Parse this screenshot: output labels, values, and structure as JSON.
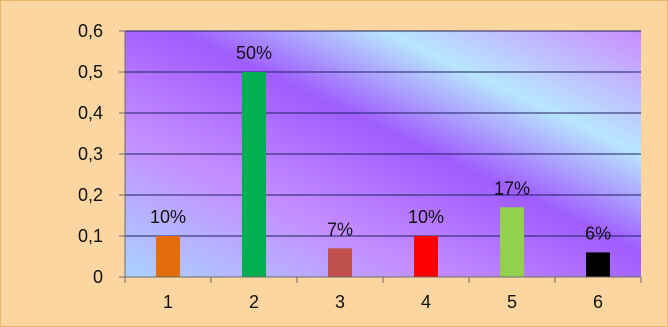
{
  "chart_data": {
    "type": "bar",
    "title": "",
    "xlabel": "",
    "ylabel": "",
    "categories": [
      "1",
      "2",
      "3",
      "4",
      "5",
      "6"
    ],
    "values": [
      0.1,
      0.5,
      0.07,
      0.1,
      0.17,
      0.06
    ],
    "data_labels": [
      "10%",
      "50%",
      "7%",
      "10%",
      "17%",
      "6%"
    ],
    "bar_colors": [
      "#e46c0a",
      "#00b050",
      "#c0504d",
      "#ff0000",
      "#92d050",
      "#000000"
    ],
    "ylim": [
      0,
      0.6
    ],
    "yticks": [
      0,
      0.1,
      0.2,
      0.3,
      0.4,
      0.5,
      0.6
    ],
    "ytick_labels": [
      "0",
      "0,1",
      "0,2",
      "0,3",
      "0,4",
      "0,5",
      "0,6"
    ],
    "grid": true,
    "legend": "none",
    "colors": {
      "frame_background": "#fcd6a0",
      "plot_gradient": [
        "#a9d3ff",
        "#c58cff",
        "#9f5cff",
        "#b8e6ff",
        "#c98cff"
      ],
      "gridline": "#1f1f5f"
    }
  }
}
